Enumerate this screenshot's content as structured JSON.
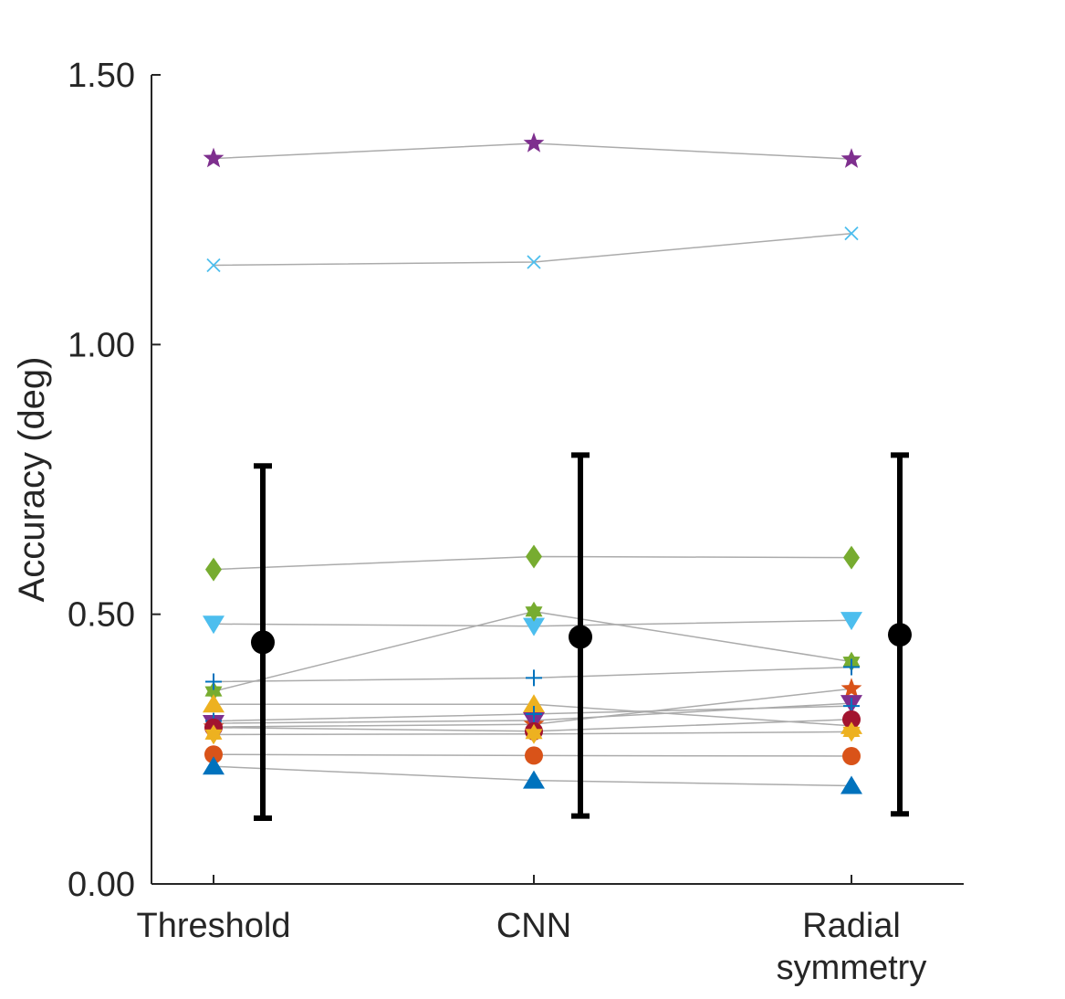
{
  "chart_data": {
    "type": "scatter",
    "title": "",
    "xlabel": "",
    "ylabel": "Accuracy (deg)",
    "ylim": [
      0,
      1.5
    ],
    "yticks": [
      "0.00",
      "0.50",
      "1.00",
      "1.50"
    ],
    "categories": [
      [
        "Threshold"
      ],
      [
        "CNN"
      ],
      [
        "Radial",
        "symmetry"
      ]
    ],
    "grid": false,
    "series": [
      {
        "marker": "star",
        "color": "#7E2F8E",
        "values": [
          1.345,
          1.373,
          1.344
        ]
      },
      {
        "marker": "x",
        "color": "#4DBEEE",
        "values": [
          1.147,
          1.153,
          1.206
        ]
      },
      {
        "marker": "diamond",
        "color": "#77AC30",
        "values": [
          0.583,
          0.607,
          0.605
        ]
      },
      {
        "marker": "triangle-down",
        "color": "#4DBEEE",
        "values": [
          0.482,
          0.478,
          0.489
        ]
      },
      {
        "marker": "hexagram",
        "color": "#77AC30",
        "values": [
          0.357,
          0.505,
          0.412
        ]
      },
      {
        "marker": "plus",
        "color": "#0072BD",
        "values": [
          0.375,
          0.382,
          0.402
        ]
      },
      {
        "marker": "triangle-up",
        "color": "#EDB120",
        "values": [
          0.333,
          0.333,
          0.293
        ]
      },
      {
        "marker": "star",
        "color": "#D95319",
        "values": [
          0.291,
          0.296,
          0.362
        ]
      },
      {
        "marker": "triangle-down",
        "color": "#7E2F8E",
        "values": [
          0.298,
          0.303,
          0.335
        ]
      },
      {
        "marker": "plus",
        "color": "#0072BD",
        "values": [
          0.302,
          0.315,
          0.33
        ]
      },
      {
        "marker": "circle",
        "color": "#A2142F",
        "values": [
          0.29,
          0.283,
          0.305
        ]
      },
      {
        "marker": "hexagram",
        "color": "#EDB120",
        "values": [
          0.277,
          0.278,
          0.282
        ]
      },
      {
        "marker": "circle",
        "color": "#D95319",
        "values": [
          0.24,
          0.238,
          0.237
        ]
      },
      {
        "marker": "triangle-up",
        "color": "#0072BD",
        "values": [
          0.218,
          0.192,
          0.182
        ]
      }
    ],
    "summary": {
      "marker": "circle",
      "color": "#000000",
      "mean": [
        0.448,
        0.458,
        0.462
      ],
      "upper": [
        0.775,
        0.795,
        0.795
      ],
      "lower": [
        0.122,
        0.126,
        0.13
      ]
    }
  }
}
